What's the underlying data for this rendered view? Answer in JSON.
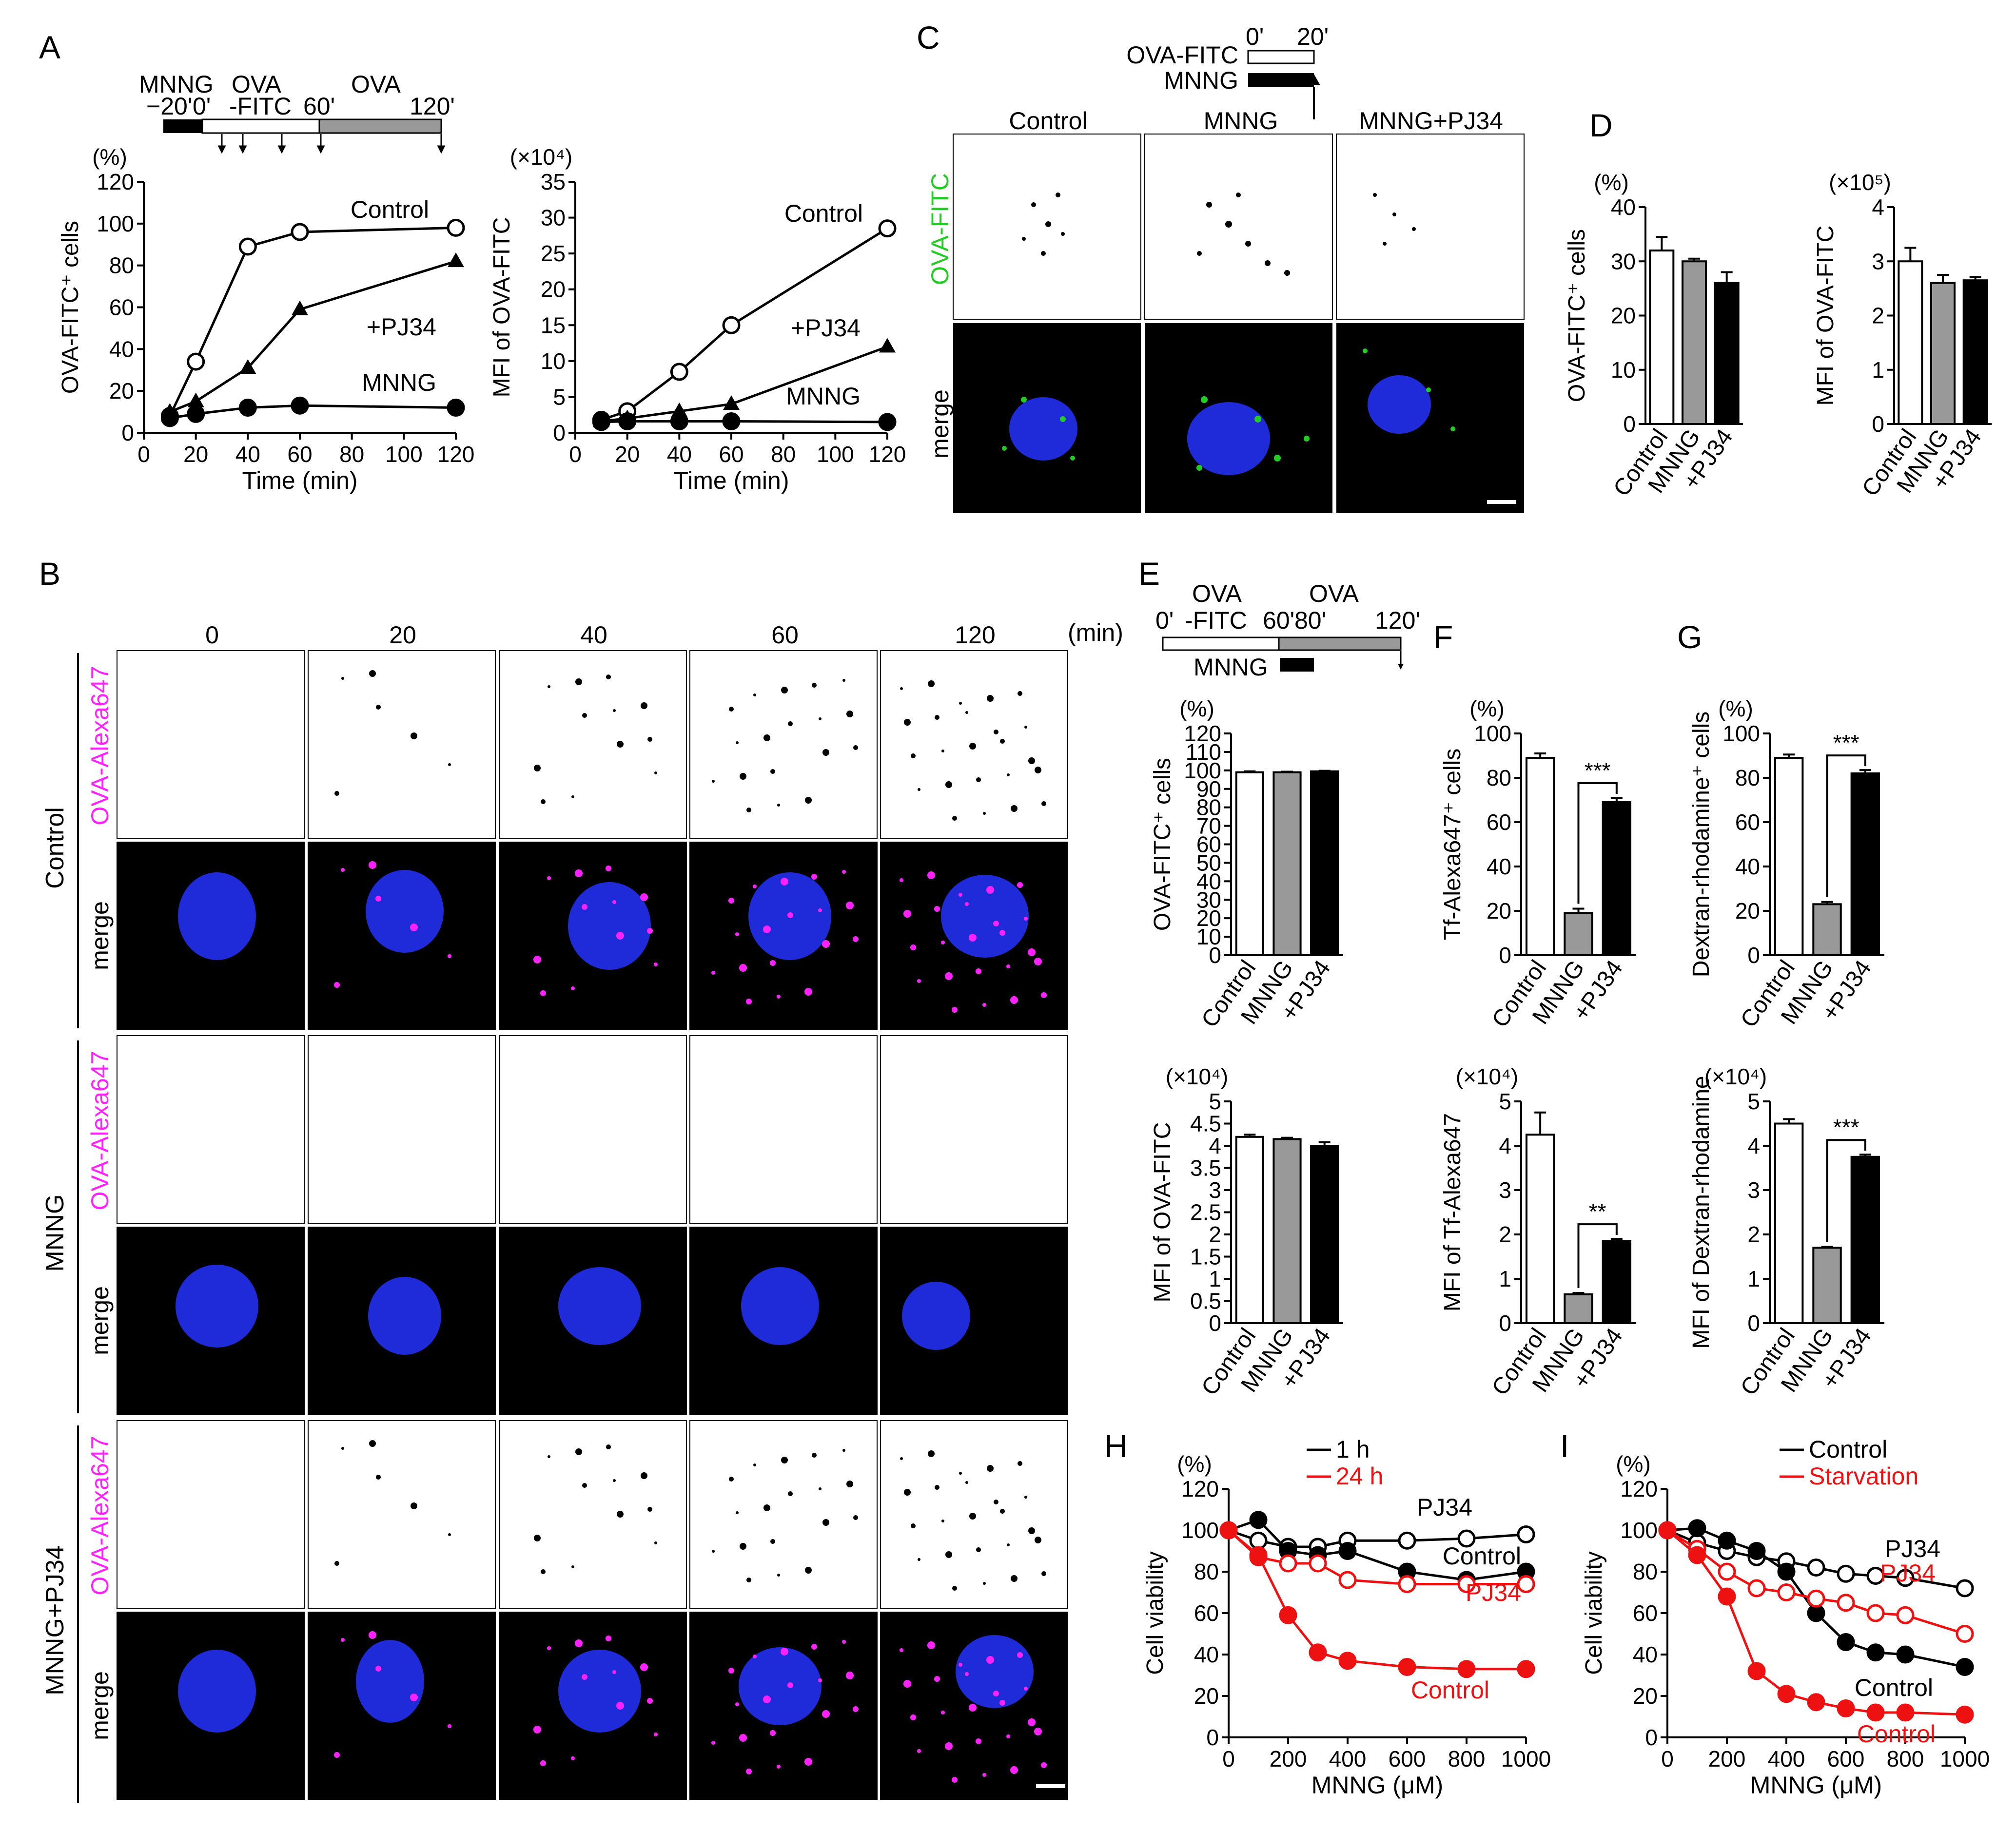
{
  "panel_letters": [
    "A",
    "B",
    "C",
    "D",
    "E",
    "F",
    "G",
    "H",
    "I"
  ],
  "colors": {
    "control_open": "#ffffff",
    "mnng_gray": "#999999",
    "pj34_black": "#000000",
    "red": "#ee1111",
    "blue_nuclei": "#1f2bd8",
    "magenta": "#ff22ff",
    "green": "#22cc22"
  },
  "units": {
    "pct": "(%)",
    "x1e4": "(×10⁴)",
    "x1e5": "(×10⁵)",
    "min": "(min)"
  },
  "timelines": {
    "A": {
      "labels": [
        "MNNG",
        "OVA",
        "OVA",
        "−20'",
        "0'",
        "-FITC",
        "60'",
        "120'"
      ]
    },
    "C": {
      "labels": [
        "0'",
        "20'",
        "OVA-FITC",
        "MNNG"
      ]
    },
    "E": {
      "labels": [
        "OVA",
        "OVA",
        "0'",
        "-FITC",
        "60'",
        "80'",
        "120'",
        "MNNG"
      ]
    }
  },
  "panel_b": {
    "cols": [
      "0",
      "20",
      "40",
      "60",
      "120"
    ],
    "min_label": "(min)",
    "groups": [
      "Control",
      "MNNG",
      "MNNG+PJ34"
    ],
    "row_labels": [
      "OVA-Alexa647",
      "merge"
    ]
  },
  "panel_c": {
    "cols": [
      "Control",
      "MNNG",
      "MNNG+PJ34"
    ],
    "row_labels": [
      "OVA-FITC",
      "merge"
    ]
  },
  "bar_categories": [
    "Control",
    "MNNG",
    "+PJ34"
  ],
  "charts": [
    {
      "id": "A1",
      "type": "line",
      "ylabel": "OVA-FITC⁺ cells",
      "yunit": "(%)",
      "xlabel": "Time (min)",
      "xlim": [
        0,
        120
      ],
      "ylim": [
        0,
        120
      ],
      "xticks": [
        "0",
        "20",
        "40",
        "60",
        "80",
        "100",
        "120"
      ],
      "yticks": [
        "0",
        "20",
        "40",
        "60",
        "80",
        "100",
        "120"
      ],
      "series": [
        {
          "name": "Control",
          "marker": "open",
          "x": [
            10,
            20,
            40,
            60,
            120
          ],
          "y": [
            8,
            34,
            89,
            96,
            98
          ]
        },
        {
          "name": "+PJ34",
          "marker": "triangle",
          "x": [
            10,
            20,
            40,
            60,
            120
          ],
          "y": [
            10,
            15,
            31,
            59,
            82
          ]
        },
        {
          "name": "MNNG",
          "marker": "filled",
          "x": [
            10,
            20,
            40,
            60,
            120
          ],
          "y": [
            7,
            9,
            12,
            13,
            12
          ]
        }
      ]
    },
    {
      "id": "A2",
      "type": "line",
      "ylabel": "MFI of OVA-FITC",
      "yunit": "(×10⁴)",
      "xlabel": "Time (min)",
      "xlim": [
        0,
        120
      ],
      "ylim": [
        0,
        35
      ],
      "xticks": [
        "0",
        "20",
        "40",
        "60",
        "80",
        "100",
        "120"
      ],
      "yticks": [
        "0",
        "5",
        "10",
        "15",
        "20",
        "25",
        "30",
        "35"
      ],
      "series": [
        {
          "name": "Control",
          "marker": "open",
          "x": [
            10,
            20,
            40,
            60,
            120
          ],
          "y": [
            1.8,
            3,
            8.5,
            15,
            28.5
          ]
        },
        {
          "name": "+PJ34",
          "marker": "triangle",
          "x": [
            10,
            20,
            40,
            60,
            120
          ],
          "y": [
            1.6,
            2,
            3,
            4,
            12
          ]
        },
        {
          "name": "MNNG",
          "marker": "filled",
          "x": [
            10,
            20,
            40,
            60,
            120
          ],
          "y": [
            1.5,
            1.6,
            1.6,
            1.6,
            1.5
          ]
        }
      ]
    },
    {
      "id": "D1",
      "type": "bar",
      "ylabel": "OVA-FITC⁺ cells",
      "yunit": "(%)",
      "ylim": [
        0,
        40
      ],
      "yticks": [
        "0",
        "10",
        "20",
        "30",
        "40"
      ],
      "values": [
        32,
        30,
        26
      ],
      "errors": [
        2.5,
        0.5,
        2
      ]
    },
    {
      "id": "D2",
      "type": "bar",
      "ylabel": "MFI of OVA-FITC",
      "yunit": "(×10⁵)",
      "ylim": [
        0,
        4
      ],
      "yticks": [
        "0",
        "1",
        "2",
        "3",
        "4"
      ],
      "values": [
        3,
        2.6,
        2.65
      ],
      "errors": [
        0.25,
        0.15,
        0.06
      ]
    },
    {
      "id": "E1",
      "type": "bar",
      "ylabel": "OVA-FITC⁺ cells",
      "yunit": "(%)",
      "ylim": [
        0,
        120
      ],
      "yticks": [
        "0",
        "10",
        "20",
        "30",
        "40",
        "50",
        "60",
        "70",
        "80",
        "90",
        "100",
        "110",
        "120"
      ],
      "values": [
        99,
        99,
        99.5
      ],
      "errors": [
        0.5,
        0.3,
        0.3
      ]
    },
    {
      "id": "F1",
      "type": "bar",
      "ylabel": "Tf-Alexa647⁺ cells",
      "yunit": "(%)",
      "ylim": [
        0,
        100
      ],
      "yticks": [
        "0",
        "20",
        "40",
        "60",
        "80",
        "100"
      ],
      "values": [
        89,
        19,
        69
      ],
      "errors": [
        2,
        2,
        2
      ],
      "sig": "***"
    },
    {
      "id": "G1",
      "type": "bar",
      "ylabel": "Dextran-rhodamine⁺ cells",
      "yunit": "(%)",
      "ylim": [
        0,
        100
      ],
      "yticks": [
        "0",
        "20",
        "40",
        "60",
        "80",
        "100"
      ],
      "values": [
        89,
        23,
        82
      ],
      "errors": [
        1.5,
        1,
        1.5
      ],
      "sig": "***"
    },
    {
      "id": "E2",
      "type": "bar",
      "ylabel": "MFI of OVA-FITC",
      "yunit": "(×10⁴)",
      "ylim": [
        0,
        5
      ],
      "yticks": [
        "0",
        "0.5",
        "1",
        "1.5",
        "2",
        "2.5",
        "3",
        "3.5",
        "4",
        "4.5",
        "5"
      ],
      "values": [
        4.2,
        4.15,
        4.0
      ],
      "errors": [
        0.05,
        0.03,
        0.08
      ]
    },
    {
      "id": "F2",
      "type": "bar",
      "ylabel": "MFI of Tf-Alexa647",
      "yunit": "(×10⁴)",
      "ylim": [
        0,
        5
      ],
      "yticks": [
        "0",
        "1",
        "2",
        "3",
        "4",
        "5"
      ],
      "values": [
        4.25,
        0.65,
        1.85
      ],
      "errors": [
        0.5,
        0.03,
        0.05
      ],
      "sig": "**"
    },
    {
      "id": "G2",
      "type": "bar",
      "ylabel": "MFI of Dextran-rhodamine",
      "yunit": "(×10⁴)",
      "ylim": [
        0,
        5
      ],
      "yticks": [
        "0",
        "1",
        "2",
        "3",
        "4",
        "5"
      ],
      "values": [
        4.5,
        1.7,
        3.75
      ],
      "errors": [
        0.1,
        0.02,
        0.05
      ],
      "sig": "***"
    },
    {
      "id": "H",
      "type": "line",
      "ylabel": "Cell viability",
      "yunit": "(%)",
      "xlabel": "MNNG (μM)",
      "xlim": [
        0,
        1000
      ],
      "ylim": [
        0,
        120
      ],
      "xticks": [
        "0",
        "200",
        "400",
        "600",
        "800",
        "1000"
      ],
      "yticks": [
        "0",
        "20",
        "40",
        "60",
        "80",
        "100",
        "120"
      ],
      "legend": [
        "1 h",
        "24 h"
      ],
      "series": [
        {
          "name": "PJ34",
          "color": "black",
          "marker": "open",
          "x": [
            0,
            100,
            200,
            300,
            400,
            600,
            800,
            1000
          ],
          "y": [
            100,
            95,
            92,
            92,
            95,
            95,
            96,
            98
          ]
        },
        {
          "name": "Control",
          "color": "black",
          "marker": "filled",
          "x": [
            0,
            100,
            200,
            300,
            400,
            600,
            800,
            1000
          ],
          "y": [
            100,
            105,
            90,
            88,
            90,
            80,
            76,
            80
          ]
        },
        {
          "name": "PJ34",
          "color": "red",
          "marker": "open",
          "x": [
            0,
            100,
            200,
            300,
            400,
            600,
            800,
            1000
          ],
          "y": [
            100,
            87,
            84,
            84,
            76,
            74,
            74,
            74
          ]
        },
        {
          "name": "Control",
          "color": "red",
          "marker": "filled",
          "x": [
            0,
            100,
            200,
            300,
            400,
            600,
            800,
            1000
          ],
          "y": [
            100,
            88,
            59,
            41,
            37,
            34,
            33,
            33
          ]
        }
      ]
    },
    {
      "id": "I",
      "type": "line",
      "ylabel": "Cell viability",
      "yunit": "(%)",
      "xlabel": "MNNG (μM)",
      "xlim": [
        0,
        1000
      ],
      "ylim": [
        0,
        120
      ],
      "xticks": [
        "0",
        "200",
        "400",
        "600",
        "800",
        "1000"
      ],
      "yticks": [
        "0",
        "20",
        "40",
        "60",
        "80",
        "100",
        "120"
      ],
      "legend": [
        "Control",
        "Starvation"
      ],
      "series": [
        {
          "name": "PJ34",
          "color": "black",
          "marker": "open",
          "x": [
            0,
            100,
            200,
            300,
            400,
            500,
            600,
            700,
            800,
            1000
          ],
          "y": [
            100,
            94,
            90,
            87,
            85,
            82,
            79,
            78,
            77,
            72
          ]
        },
        {
          "name": "Control",
          "color": "black",
          "marker": "filled",
          "x": [
            0,
            100,
            200,
            300,
            400,
            500,
            600,
            700,
            800,
            1000
          ],
          "y": [
            100,
            101,
            95,
            90,
            80,
            60,
            46,
            41,
            40,
            34
          ]
        },
        {
          "name": "PJ34",
          "color": "red",
          "marker": "open",
          "x": [
            0,
            100,
            200,
            300,
            400,
            500,
            600,
            700,
            800,
            1000
          ],
          "y": [
            100,
            91,
            80,
            72,
            70,
            67,
            65,
            60,
            59,
            50
          ]
        },
        {
          "name": "Control",
          "color": "red",
          "marker": "filled",
          "x": [
            0,
            100,
            200,
            300,
            400,
            500,
            600,
            700,
            800,
            1000
          ],
          "y": [
            100,
            88,
            68,
            32,
            21,
            17,
            14,
            12,
            12,
            11
          ]
        }
      ]
    }
  ]
}
